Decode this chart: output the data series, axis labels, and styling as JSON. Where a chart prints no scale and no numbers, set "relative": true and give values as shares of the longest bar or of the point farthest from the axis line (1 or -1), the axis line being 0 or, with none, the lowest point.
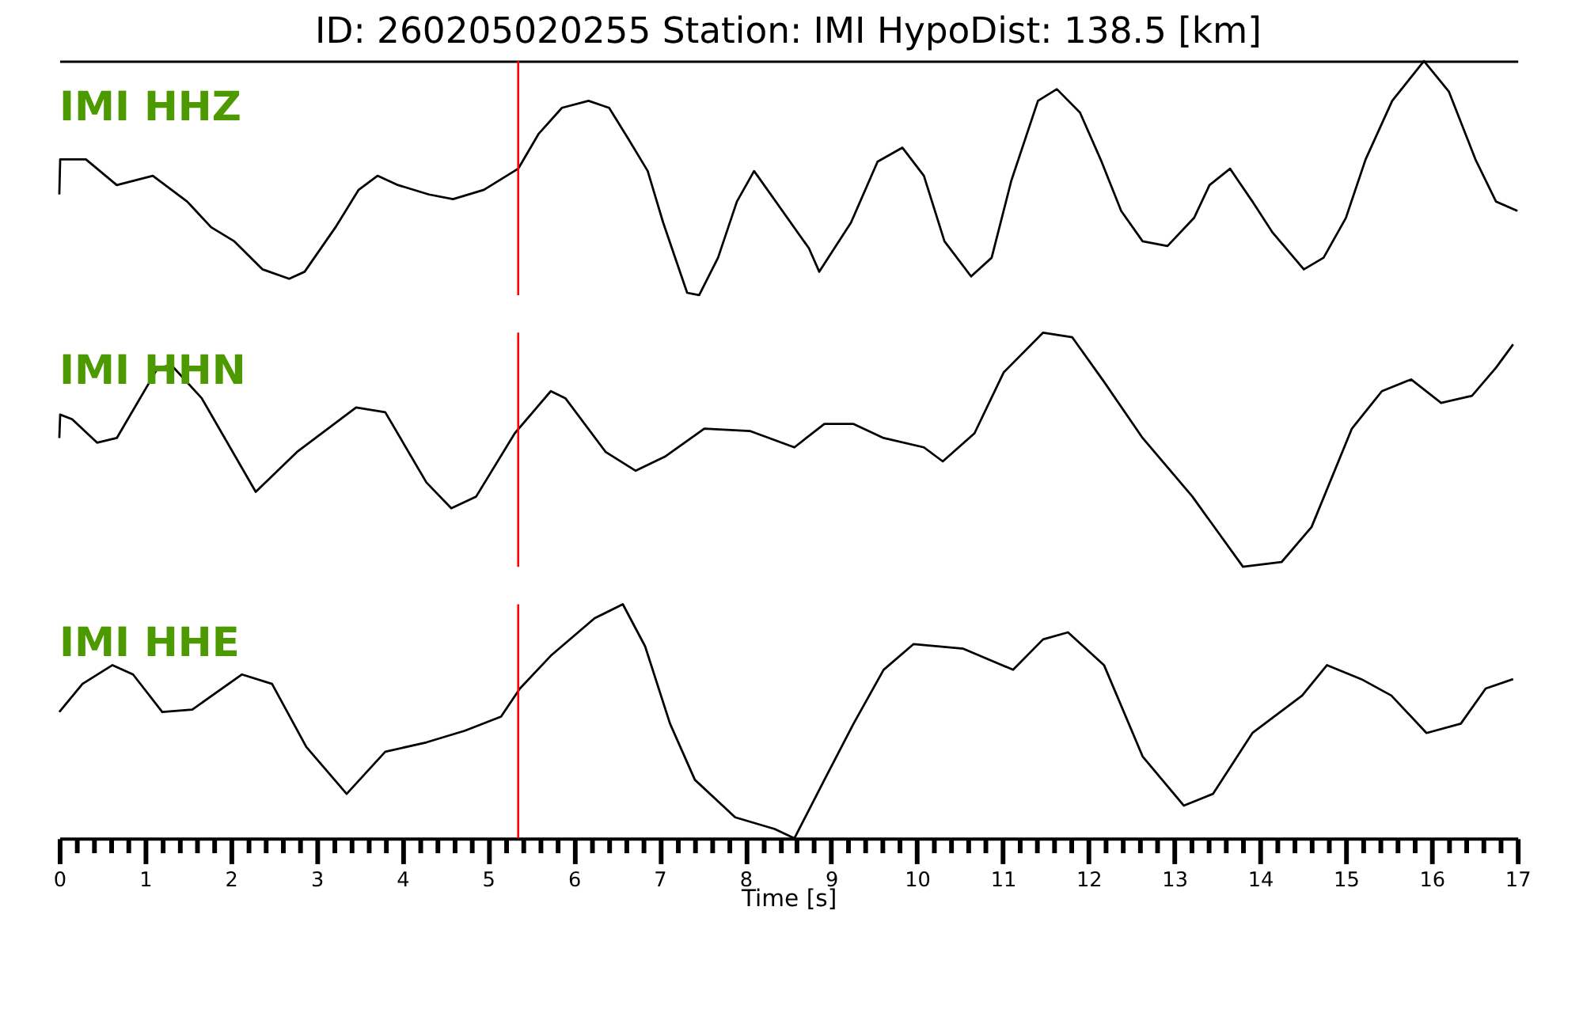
{
  "chart_data": [
    {
      "type": "line",
      "title": "ID: 260205020255   Station: IMI   HypoDist:   138.5 [km]",
      "relative": true,
      "xlim": [
        0,
        17
      ],
      "tick_labels": false,
      "ref_lines": [
        {
          "axis": "x",
          "value": 5.35,
          "color": "#ff0000"
        }
      ],
      "series": [
        {
          "name": "IMI HHZ",
          "color": "#000000",
          "x": [
            0,
            0.01,
            0.31,
            0.67,
            1.09,
            1.49,
            1.77,
            2.04,
            2.37,
            2.68,
            2.86,
            3.22,
            3.49,
            3.71,
            3.95,
            4.31,
            4.59,
            4.95,
            5.35,
            5.59,
            5.86,
            6.17,
            6.41,
            6.63,
            6.86,
            7.04,
            7.32,
            7.46,
            7.68,
            7.9,
            8.1,
            8.14,
            8.74,
            8.86,
            9.23,
            9.54,
            9.83,
            10.08,
            10.32,
            10.63,
            10.87,
            11.1,
            11.41,
            11.63,
            11.9,
            12.14,
            12.38,
            12.63,
            12.92,
            13.23,
            13.41,
            13.65,
            13.91,
            14.14,
            14.51,
            14.74,
            15.0,
            15.23,
            15.54,
            15.91,
            16.2,
            16.51,
            16.75,
            17.0
          ],
          "values": [
            0.43,
            0.58,
            0.58,
            0.47,
            0.51,
            0.4,
            0.29,
            0.23,
            0.11,
            0.07,
            0.1,
            0.29,
            0.45,
            0.51,
            0.47,
            0.43,
            0.41,
            0.45,
            0.54,
            0.69,
            0.8,
            0.83,
            0.8,
            0.67,
            0.53,
            0.31,
            0.01,
            0.0,
            0.16,
            0.4,
            0.53,
            0.51,
            0.2,
            0.1,
            0.31,
            0.57,
            0.63,
            0.51,
            0.23,
            0.08,
            0.16,
            0.49,
            0.83,
            0.88,
            0.78,
            0.58,
            0.36,
            0.23,
            0.21,
            0.33,
            0.47,
            0.54,
            0.4,
            0.27,
            0.11,
            0.16,
            0.33,
            0.58,
            0.83,
            1.0,
            0.87,
            0.58,
            0.4,
            0.36
          ]
        }
      ]
    },
    {
      "type": "line",
      "relative": true,
      "xlim": [
        0,
        17
      ],
      "tick_labels": false,
      "ref_lines": [
        {
          "axis": "x",
          "value": 5.35,
          "color": "#ff0000"
        }
      ],
      "series": [
        {
          "name": "IMI HHN",
          "color": "#000000",
          "x": [
            0,
            0.01,
            0.15,
            0.44,
            0.67,
            1.15,
            1.31,
            1.66,
            2.29,
            2.77,
            3.46,
            3.8,
            4.28,
            4.57,
            4.86,
            5.31,
            5.73,
            5.9,
            6.37,
            6.72,
            7.06,
            7.52,
            8.05,
            8.57,
            8.92,
            9.26,
            9.61,
            10.08,
            10.3,
            10.67,
            11.01,
            11.47,
            11.81,
            12.18,
            12.63,
            13.21,
            13.8,
            14.25,
            14.6,
            15.07,
            15.42,
            15.76,
            16.11,
            16.47,
            16.75,
            16.95
          ],
          "values": [
            0.55,
            0.65,
            0.63,
            0.53,
            0.55,
            0.85,
            0.86,
            0.72,
            0.32,
            0.49,
            0.68,
            0.66,
            0.36,
            0.25,
            0.3,
            0.57,
            0.75,
            0.72,
            0.49,
            0.41,
            0.47,
            0.59,
            0.58,
            0.51,
            0.61,
            0.61,
            0.55,
            0.51,
            0.45,
            0.57,
            0.83,
            1.0,
            0.98,
            0.79,
            0.55,
            0.3,
            0.0,
            0.02,
            0.17,
            0.59,
            0.75,
            0.8,
            0.7,
            0.73,
            0.85,
            0.95
          ]
        }
      ]
    },
    {
      "type": "line",
      "relative": true,
      "xlabel": "Time [s]",
      "xlim": [
        0,
        17
      ],
      "tick_labels": "x",
      "xticks": [
        0,
        {
          "value": 0.2,
          "label": null
        },
        {
          "value": 0.4,
          "label": null
        },
        {
          "value": 0.6,
          "label": null
        },
        {
          "value": 0.8,
          "label": null
        },
        1,
        {
          "value": 1.2,
          "label": null
        },
        {
          "value": 1.4,
          "label": null
        },
        {
          "value": 1.6,
          "label": null
        },
        {
          "value": 1.8,
          "label": null
        },
        2,
        {
          "value": 2.2,
          "label": null
        },
        {
          "value": 2.4,
          "label": null
        },
        {
          "value": 2.6,
          "label": null
        },
        {
          "value": 2.8,
          "label": null
        },
        3,
        {
          "value": 3.2,
          "label": null
        },
        {
          "value": 3.4,
          "label": null
        },
        {
          "value": 3.6,
          "label": null
        },
        {
          "value": 3.8,
          "label": null
        },
        4,
        {
          "value": 4.2,
          "label": null
        },
        {
          "value": 4.4,
          "label": null
        },
        {
          "value": 4.6,
          "label": null
        },
        {
          "value": 4.8,
          "label": null
        },
        5,
        {
          "value": 5.2,
          "label": null
        },
        {
          "value": 5.4,
          "label": null
        },
        {
          "value": 5.6,
          "label": null
        },
        {
          "value": 5.8,
          "label": null
        },
        6,
        {
          "value": 6.2,
          "label": null
        },
        {
          "value": 6.4,
          "label": null
        },
        {
          "value": 6.6,
          "label": null
        },
        {
          "value": 6.8,
          "label": null
        },
        7,
        {
          "value": 7.2,
          "label": null
        },
        {
          "value": 7.4,
          "label": null
        },
        {
          "value": 7.6,
          "label": null
        },
        {
          "value": 7.8,
          "label": null
        },
        8,
        {
          "value": 8.2,
          "label": null
        },
        {
          "value": 8.4,
          "label": null
        },
        {
          "value": 8.6,
          "label": null
        },
        {
          "value": 8.8,
          "label": null
        },
        9,
        {
          "value": 9.2,
          "label": null
        },
        {
          "value": 9.4,
          "label": null
        },
        {
          "value": 9.6,
          "label": null
        },
        {
          "value": 9.8,
          "label": null
        },
        10,
        {
          "value": 10.2,
          "label": null
        },
        {
          "value": 10.4,
          "label": null
        },
        {
          "value": 10.6,
          "label": null
        },
        {
          "value": 10.8,
          "label": null
        },
        11,
        {
          "value": 11.2,
          "label": null
        },
        {
          "value": 11.4,
          "label": null
        },
        {
          "value": 11.6,
          "label": null
        },
        {
          "value": 11.8,
          "label": null
        },
        12,
        {
          "value": 12.2,
          "label": null
        },
        {
          "value": 12.4,
          "label": null
        },
        {
          "value": 12.6,
          "label": null
        },
        {
          "value": 12.8,
          "label": null
        },
        13,
        {
          "value": 13.2,
          "label": null
        },
        {
          "value": 13.4,
          "label": null
        },
        {
          "value": 13.6,
          "label": null
        },
        {
          "value": 13.8,
          "label": null
        },
        14,
        {
          "value": 14.2,
          "label": null
        },
        {
          "value": 14.4,
          "label": null
        },
        {
          "value": 14.6,
          "label": null
        },
        {
          "value": 14.8,
          "label": null
        },
        15,
        {
          "value": 15.2,
          "label": null
        },
        {
          "value": 15.4,
          "label": null
        },
        {
          "value": 15.6,
          "label": null
        },
        {
          "value": 15.8,
          "label": null
        },
        16,
        {
          "value": 16.2,
          "label": null
        },
        {
          "value": 16.4,
          "label": null
        },
        {
          "value": 16.6,
          "label": null
        },
        {
          "value": 16.8,
          "label": null
        },
        17
      ],
      "ref_lines": [
        {
          "axis": "x",
          "value": 5.35,
          "color": "#ff0000"
        }
      ],
      "series": [
        {
          "name": "IMI HHE",
          "color": "#000000",
          "x": [
            0,
            0.27,
            0.62,
            0.86,
            1.2,
            1.55,
            2.13,
            2.48,
            2.88,
            3.35,
            3.8,
            4.28,
            4.73,
            5.15,
            5.37,
            5.73,
            6.24,
            6.57,
            6.83,
            7.12,
            7.41,
            7.88,
            8.34,
            8.57,
            8.92,
            9.26,
            9.61,
            9.96,
            10.54,
            11.12,
            11.47,
            11.76,
            12.18,
            12.63,
            13.11,
            13.45,
            13.91,
            14.49,
            14.78,
            15.18,
            15.53,
            15.94,
            16.34,
            16.63,
            16.95
          ],
          "values": [
            0.54,
            0.66,
            0.74,
            0.7,
            0.54,
            0.55,
            0.7,
            0.66,
            0.39,
            0.19,
            0.37,
            0.41,
            0.46,
            0.52,
            0.64,
            0.78,
            0.94,
            1.0,
            0.82,
            0.49,
            0.25,
            0.09,
            0.04,
            0.0,
            0.25,
            0.49,
            0.72,
            0.83,
            0.81,
            0.72,
            0.85,
            0.88,
            0.74,
            0.35,
            0.14,
            0.19,
            0.45,
            0.61,
            0.74,
            0.68,
            0.61,
            0.45,
            0.49,
            0.64,
            0.68
          ]
        }
      ]
    }
  ]
}
